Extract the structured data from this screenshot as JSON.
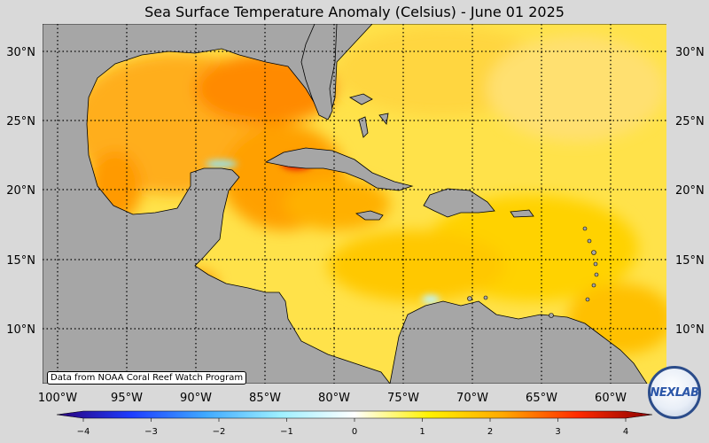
{
  "map": {
    "title": "Sea Surface Temperature Anomaly (Celsius) - June 01 2025",
    "credit": "Data from NOAA Coral Reef Watch Program",
    "logo_text": "NEXLAB",
    "lat_labels": [
      "30°N",
      "25°N",
      "20°N",
      "15°N",
      "10°N"
    ],
    "lon_labels": [
      "100°W",
      "95°W",
      "90°W",
      "85°W",
      "80°W",
      "75°W",
      "70°W",
      "65°W",
      "60°W"
    ],
    "colorbar": {
      "min": -4,
      "max": 4,
      "tick_labels": [
        "−4",
        "−3",
        "−2",
        "−1",
        "0",
        "1",
        "2",
        "3",
        "4"
      ],
      "colors": [
        "#2a0078",
        "#1e3cff",
        "#3fa9ff",
        "#9ef0ff",
        "#ffffff",
        "#fff200",
        "#ffa800",
        "#ff2a00",
        "#8b0000"
      ]
    },
    "colors": {
      "land": "#a6a6a6",
      "ocean_warm": "#ffd000",
      "ocean_hot": "#ff7a00",
      "ocean_hotspot": "#e00000",
      "ocean_cool": "#8fe8ff"
    }
  }
}
